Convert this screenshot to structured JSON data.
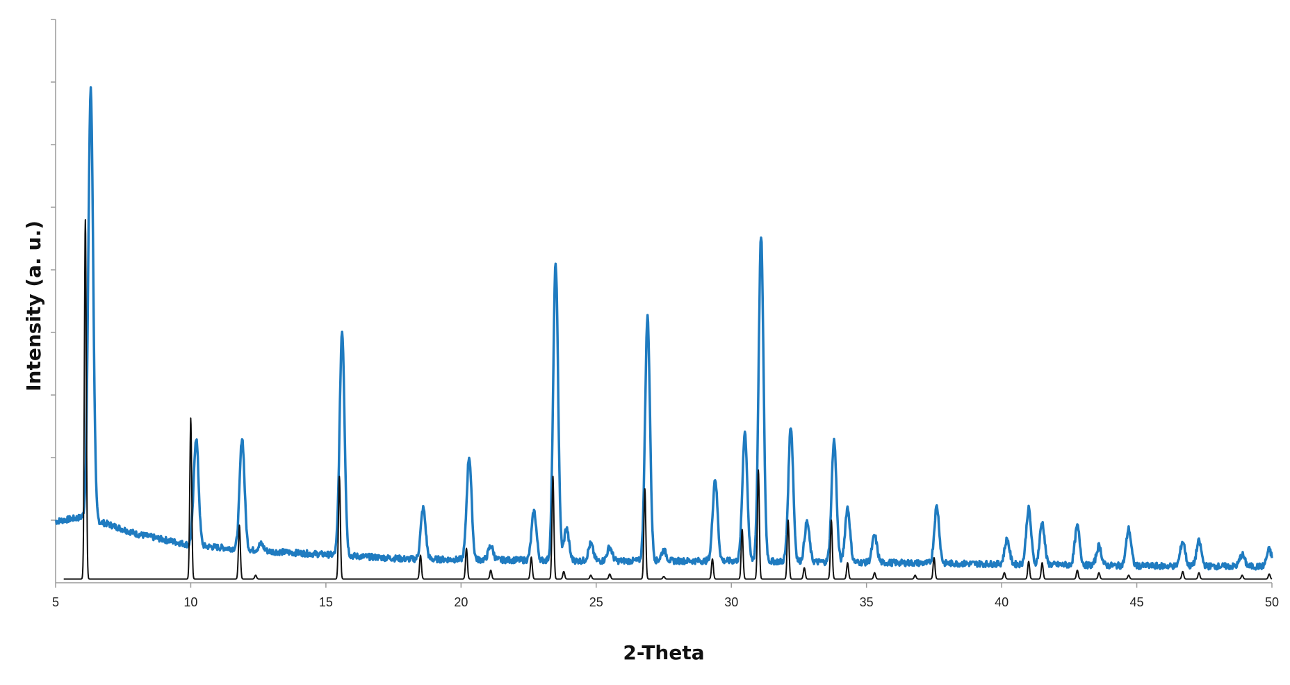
{
  "chart_data": {
    "type": "line",
    "xlabel": "2-Theta",
    "ylabel": "Intensity (a. u.)",
    "xlim": [
      5,
      50
    ],
    "ylim": [
      0,
      900
    ],
    "x_ticks": [
      5,
      10,
      15,
      20,
      25,
      30,
      35,
      40,
      45,
      50
    ],
    "y_tick_values": [
      100,
      200,
      300,
      400,
      500,
      600,
      700,
      800,
      900
    ],
    "y_tick_labels_shown": false,
    "grid": false,
    "legend": "none",
    "series": [
      {
        "color": "#1f7bc0",
        "style": "experimental-pattern",
        "baseline": [
          [
            5,
            98
          ],
          [
            6,
            105
          ],
          [
            7,
            93
          ],
          [
            8,
            78
          ],
          [
            9,
            69
          ],
          [
            10,
            60
          ],
          [
            13,
            50
          ],
          [
            18,
            38
          ],
          [
            25,
            35
          ],
          [
            30,
            35
          ],
          [
            40,
            30
          ],
          [
            45,
            27
          ],
          [
            50,
            26
          ]
        ],
        "peaks": [
          {
            "x": 6.3,
            "y": 788
          },
          {
            "x": 10.2,
            "y": 231
          },
          {
            "x": 11.9,
            "y": 231
          },
          {
            "x": 12.6,
            "y": 62
          },
          {
            "x": 15.6,
            "y": 402
          },
          {
            "x": 18.6,
            "y": 119
          },
          {
            "x": 20.3,
            "y": 201
          },
          {
            "x": 21.1,
            "y": 59
          },
          {
            "x": 22.7,
            "y": 114
          },
          {
            "x": 23.5,
            "y": 510
          },
          {
            "x": 23.9,
            "y": 87
          },
          {
            "x": 24.8,
            "y": 62
          },
          {
            "x": 25.5,
            "y": 57
          },
          {
            "x": 26.9,
            "y": 425
          },
          {
            "x": 27.5,
            "y": 52
          },
          {
            "x": 29.4,
            "y": 166
          },
          {
            "x": 30.5,
            "y": 241
          },
          {
            "x": 31.1,
            "y": 552
          },
          {
            "x": 32.2,
            "y": 250
          },
          {
            "x": 32.8,
            "y": 97
          },
          {
            "x": 33.8,
            "y": 227
          },
          {
            "x": 34.3,
            "y": 120
          },
          {
            "x": 35.3,
            "y": 75
          },
          {
            "x": 37.6,
            "y": 122
          },
          {
            "x": 40.2,
            "y": 69
          },
          {
            "x": 41.0,
            "y": 118
          },
          {
            "x": 41.5,
            "y": 96
          },
          {
            "x": 42.8,
            "y": 90
          },
          {
            "x": 43.6,
            "y": 59
          },
          {
            "x": 44.7,
            "y": 86
          },
          {
            "x": 46.7,
            "y": 66
          },
          {
            "x": 47.3,
            "y": 66
          },
          {
            "x": 48.9,
            "y": 45
          },
          {
            "x": 49.9,
            "y": 53
          }
        ]
      },
      {
        "color": "#111111",
        "style": "calculated-pattern",
        "baseline": [
          [
            5.3,
            6
          ],
          [
            50,
            6
          ]
        ],
        "peaks": [
          {
            "x": 6.1,
            "y": 580
          },
          {
            "x": 10.0,
            "y": 263
          },
          {
            "x": 11.8,
            "y": 92
          },
          {
            "x": 12.4,
            "y": 12
          },
          {
            "x": 15.5,
            "y": 170
          },
          {
            "x": 18.5,
            "y": 44
          },
          {
            "x": 20.2,
            "y": 55
          },
          {
            "x": 21.1,
            "y": 20
          },
          {
            "x": 22.6,
            "y": 41
          },
          {
            "x": 23.4,
            "y": 170
          },
          {
            "x": 23.8,
            "y": 18
          },
          {
            "x": 24.8,
            "y": 12
          },
          {
            "x": 25.5,
            "y": 14
          },
          {
            "x": 26.8,
            "y": 150
          },
          {
            "x": 27.5,
            "y": 10
          },
          {
            "x": 29.3,
            "y": 38
          },
          {
            "x": 30.4,
            "y": 85
          },
          {
            "x": 31.0,
            "y": 180
          },
          {
            "x": 32.1,
            "y": 100
          },
          {
            "x": 32.7,
            "y": 24
          },
          {
            "x": 33.7,
            "y": 100
          },
          {
            "x": 34.3,
            "y": 32
          },
          {
            "x": 35.3,
            "y": 16
          },
          {
            "x": 36.8,
            "y": 12
          },
          {
            "x": 37.5,
            "y": 40
          },
          {
            "x": 40.1,
            "y": 16
          },
          {
            "x": 41.0,
            "y": 34
          },
          {
            "x": 41.5,
            "y": 32
          },
          {
            "x": 42.8,
            "y": 20
          },
          {
            "x": 43.6,
            "y": 16
          },
          {
            "x": 44.7,
            "y": 12
          },
          {
            "x": 46.7,
            "y": 18
          },
          {
            "x": 47.3,
            "y": 16
          },
          {
            "x": 48.9,
            "y": 12
          },
          {
            "x": 49.9,
            "y": 14
          }
        ]
      }
    ]
  }
}
